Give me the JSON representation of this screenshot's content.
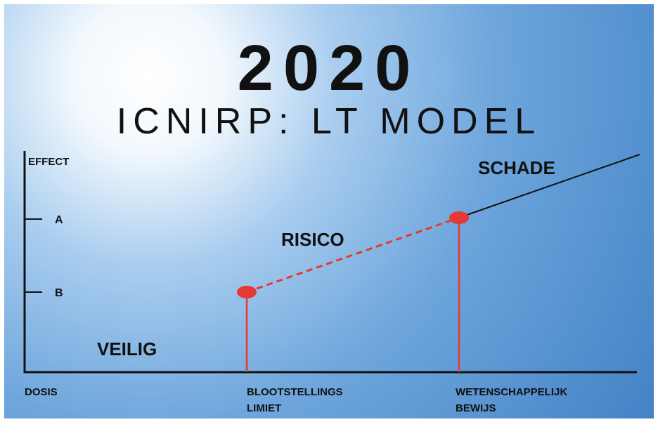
{
  "header": {
    "title": "2020",
    "subtitle": "ICNIRP: LT MODEL"
  },
  "axis": {
    "y_label": "EFFECT",
    "x_label": "DOSIS",
    "y_ticks": [
      "A",
      "B"
    ]
  },
  "zones": {
    "safe": "VEILIG",
    "risk": "RISICO",
    "harm": "SCHADE"
  },
  "markers": [
    {
      "lines": [
        "BLOOTSTELLINGS",
        "LIMIET"
      ]
    },
    {
      "lines": [
        "WETENSCHAPPELIJK",
        "BEWIJS"
      ]
    }
  ]
}
